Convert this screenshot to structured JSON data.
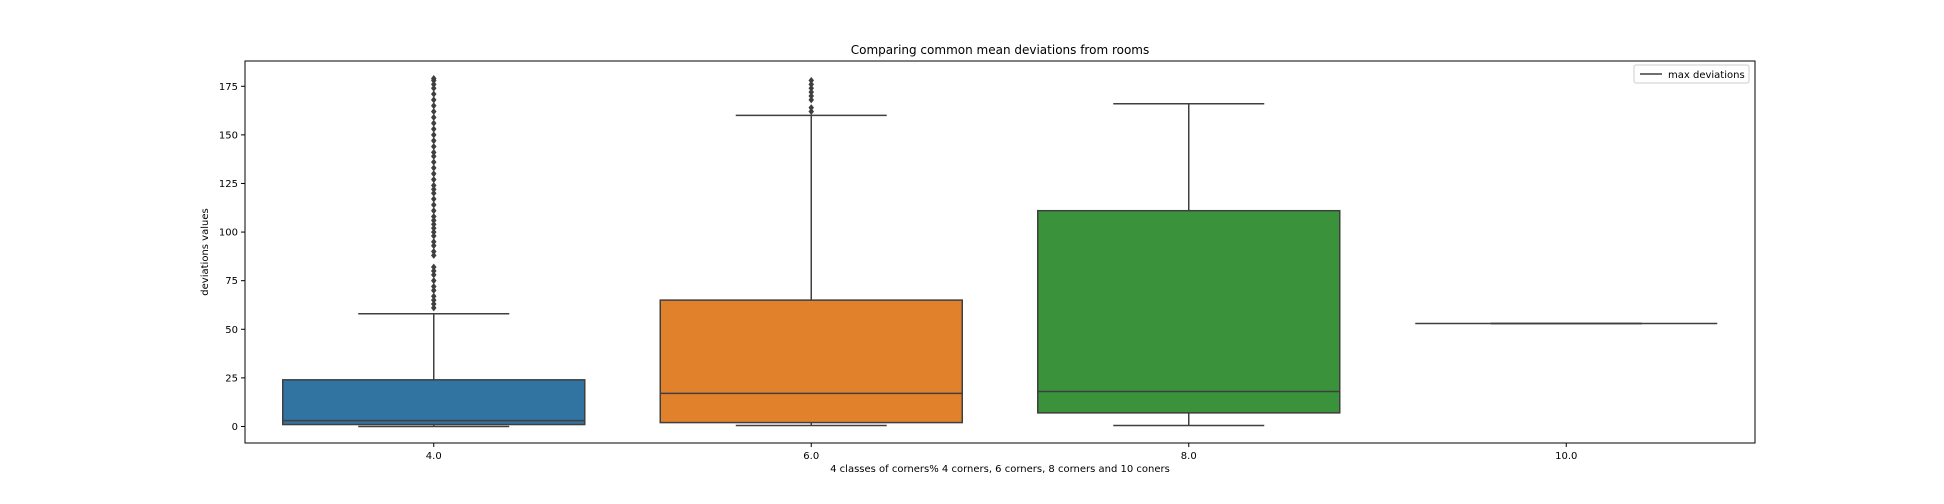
{
  "chart_data": {
    "type": "box",
    "title": "Comparing common mean deviations from rooms",
    "xlabel": "4 classes of corners% 4 corners, 6 corners, 8 corners and 10 coners",
    "ylabel": "deviations values",
    "ylim": [
      -8.5,
      188
    ],
    "yticks": [
      0,
      25,
      50,
      75,
      100,
      125,
      150,
      175
    ],
    "legend": {
      "label": "max deviations",
      "position": "upper right"
    },
    "grid": false,
    "categories": [
      "4.0",
      "6.0",
      "8.0",
      "10.0"
    ],
    "boxes": [
      {
        "category": "4.0",
        "color": "#3274a1",
        "whislo": 0,
        "q1": 1,
        "med": 3,
        "q3": 24,
        "whishi": 58,
        "fliers": [
          61,
          63,
          65,
          67,
          70,
          72,
          75,
          78,
          80,
          82,
          88,
          90,
          93,
          95,
          98,
          100,
          102,
          104,
          106,
          108,
          111,
          114,
          117,
          120,
          122,
          124,
          127,
          130,
          133,
          136,
          139,
          141,
          144,
          147,
          150,
          153,
          156,
          159,
          162,
          165,
          168,
          171,
          174,
          176,
          178,
          179
        ]
      },
      {
        "category": "6.0",
        "color": "#e1812c",
        "whislo": 0.5,
        "q1": 2,
        "med": 17,
        "q3": 65,
        "whishi": 160,
        "fliers": [
          162,
          164,
          168,
          170,
          172,
          174,
          176,
          178
        ]
      },
      {
        "category": "8.0",
        "color": "#3a923a",
        "whislo": 0.5,
        "q1": 7,
        "med": 18,
        "q3": 111,
        "whishi": 166,
        "fliers": []
      },
      {
        "category": "10.0",
        "color": "#c03d3e",
        "whislo": 53,
        "q1": 53,
        "med": 53,
        "q3": 53,
        "whishi": 53,
        "fliers": []
      }
    ]
  }
}
